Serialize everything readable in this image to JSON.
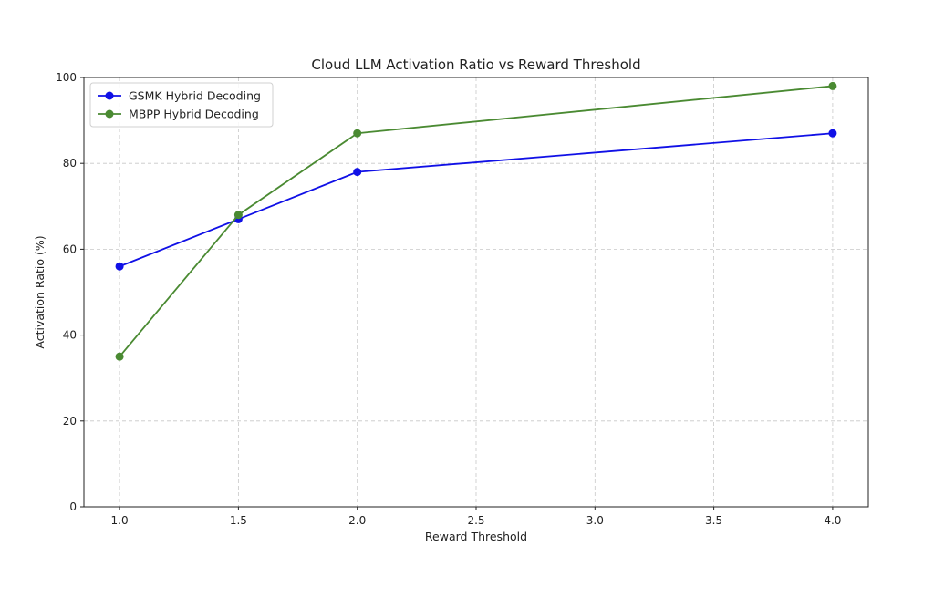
{
  "chart_data": {
    "type": "line",
    "title": "Cloud LLM Activation Ratio vs Reward Threshold",
    "xlabel": "Reward Threshold",
    "ylabel": "Activation Ratio (%)",
    "xlim": [
      0.85,
      4.15
    ],
    "ylim": [
      0,
      100
    ],
    "xticks": [
      1.0,
      1.5,
      2.0,
      2.5,
      3.0,
      3.5,
      4.0
    ],
    "xtick_labels": [
      "1.0",
      "1.5",
      "2.0",
      "2.5",
      "3.0",
      "3.5",
      "4.0"
    ],
    "yticks": [
      0,
      20,
      40,
      60,
      80,
      100
    ],
    "ytick_labels": [
      "0",
      "20",
      "40",
      "60",
      "80",
      "100"
    ],
    "grid": true,
    "legend_position": "top-left",
    "series": [
      {
        "name": "GSMK Hybrid Decoding",
        "color": "#1010e6",
        "marker": "circle",
        "x": [
          1.0,
          1.5,
          2.0,
          4.0
        ],
        "y": [
          56,
          67,
          78,
          87
        ]
      },
      {
        "name": "MBPP Hybrid Decoding",
        "color": "#4a8a32",
        "marker": "circle",
        "x": [
          1.0,
          1.5,
          2.0,
          4.0
        ],
        "y": [
          35,
          68,
          87,
          98
        ]
      }
    ]
  }
}
